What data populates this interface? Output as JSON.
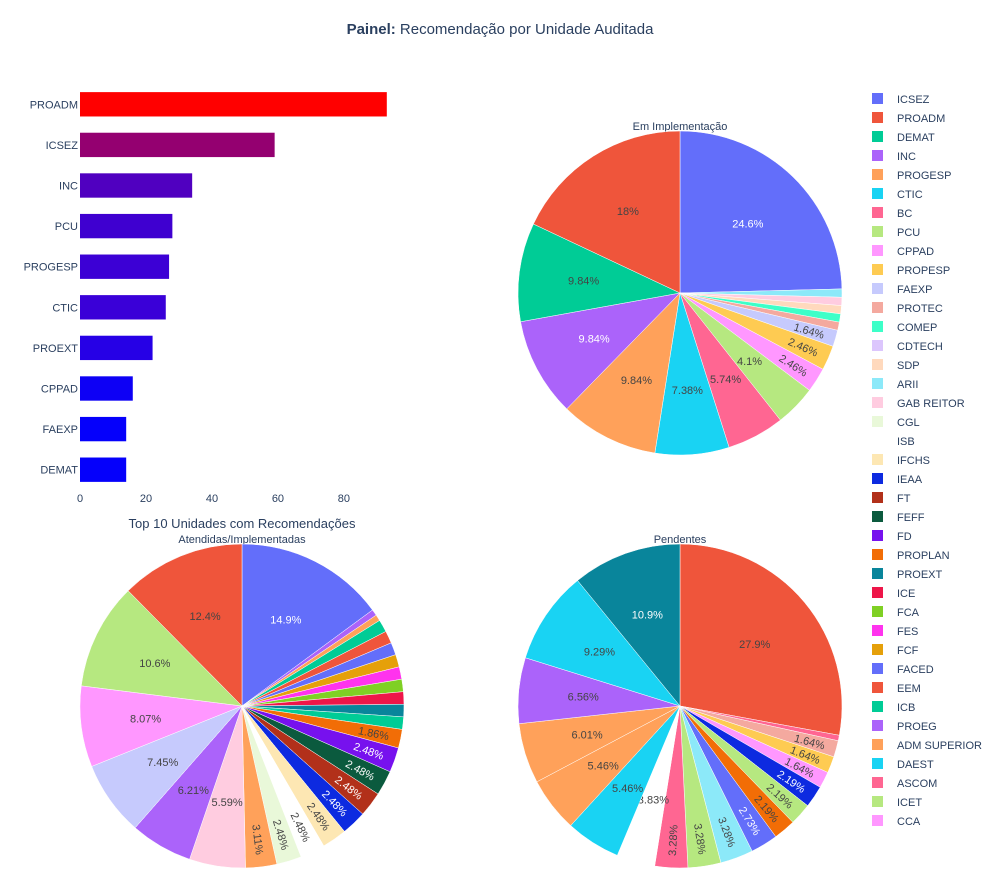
{
  "title": {
    "bold": "Painel:",
    "rest": " Recomendação por Unidade Auditada"
  },
  "legend_items": [
    {
      "name": "ICSEZ",
      "color": "#636efa"
    },
    {
      "name": "PROADM",
      "color": "#ef553b"
    },
    {
      "name": "DEMAT",
      "color": "#00cc96"
    },
    {
      "name": "INC",
      "color": "#ab63fa"
    },
    {
      "name": "PROGESP",
      "color": "#ffa15a"
    },
    {
      "name": "CTIC",
      "color": "#19d3f3"
    },
    {
      "name": "BC",
      "color": "#ff6692"
    },
    {
      "name": "PCU",
      "color": "#b6e880"
    },
    {
      "name": "CPPAD",
      "color": "#ff97ff"
    },
    {
      "name": "PROPESP",
      "color": "#fecb52"
    },
    {
      "name": "FAEXP",
      "color": "#c6cafd"
    },
    {
      "name": "PROTEC",
      "color": "#f4a99f"
    },
    {
      "name": "COMEP",
      "color": "#3dffc8"
    },
    {
      "name": "CDTECH",
      "color": "#dcc6fd"
    },
    {
      "name": "SDP",
      "color": "#ffd9bd"
    },
    {
      "name": "ARII",
      "color": "#8ce9f9"
    },
    {
      "name": "GAB REITOR",
      "color": "#ffcce0"
    },
    {
      "name": "CGL",
      "color": "#e9f8d9"
    },
    {
      "name": "ISB",
      "color": "#ffffff"
    },
    {
      "name": "IFCHS",
      "color": "#fde7b3"
    },
    {
      "name": "IEAA",
      "color": "#0d2ae0"
    },
    {
      "name": "FT",
      "color": "#b2301a"
    },
    {
      "name": "FEFF",
      "color": "#0b5a3e"
    },
    {
      "name": "FD",
      "color": "#7711ee"
    },
    {
      "name": "PROPLAN",
      "color": "#f26d06"
    },
    {
      "name": "PROEXT",
      "color": "#09859b"
    },
    {
      "name": "ICE",
      "color": "#ee1649"
    },
    {
      "name": "FCA",
      "color": "#7fd024"
    },
    {
      "name": "FES",
      "color": "#ff33ee"
    },
    {
      "name": "FCF",
      "color": "#e5a00a"
    },
    {
      "name": "FACED",
      "color": "#636efa"
    },
    {
      "name": "EEM",
      "color": "#ef553b"
    },
    {
      "name": "ICB",
      "color": "#00cc96"
    },
    {
      "name": "PROEG",
      "color": "#ab63fa"
    },
    {
      "name": "ADM SUPERIOR",
      "color": "#ffa15a"
    },
    {
      "name": "DAEST",
      "color": "#19d3f3"
    },
    {
      "name": "ASCOM",
      "color": "#ff6692"
    },
    {
      "name": "ICET",
      "color": "#b6e880"
    },
    {
      "name": "CCA",
      "color": "#ff97ff"
    }
  ],
  "chart_data": [
    {
      "type": "bar",
      "orientation": "horizontal",
      "title": "Top 10 Unidades com Recomendações",
      "categories": [
        "PROADM",
        "ICSEZ",
        "INC",
        "PCU",
        "PROGESP",
        "CTIC",
        "PROEXT",
        "CPPAD",
        "FAEXP",
        "DEMAT"
      ],
      "values": [
        93,
        59,
        34,
        28,
        27,
        26,
        22,
        16,
        14,
        14
      ],
      "colors": [
        "#ff0000",
        "#940070",
        "#5000c0",
        "#3f00d0",
        "#3c00d5",
        "#3a00d8",
        "#2600e6",
        "#0d00f5",
        "#0500fb",
        "#0500fb"
      ],
      "xticks": [
        "0",
        "20",
        "40",
        "60",
        "80"
      ],
      "xlim": [
        0,
        97
      ]
    },
    {
      "type": "pie",
      "title": "Em Implementação",
      "slices": [
        {
          "name": "ICSEZ",
          "value": 24.6,
          "label": "24.6%",
          "label_color": "#ffffff"
        },
        {
          "name": "ARII",
          "value": 0.82,
          "label": ""
        },
        {
          "name": "GAB REITOR",
          "value": 0.82,
          "label": ""
        },
        {
          "name": "SDP",
          "value": 0.82,
          "label": ""
        },
        {
          "name": "COMEP",
          "value": 0.82,
          "label": ""
        },
        {
          "name": "PROTEC",
          "value": 0.82,
          "label": ""
        },
        {
          "name": "FAEXP",
          "value": 1.64,
          "label": "1.64%",
          "label_color": "#444444",
          "radial": true
        },
        {
          "name": "PROPESP",
          "value": 2.46,
          "label": "2.46%",
          "label_color": "#444444",
          "radial": true
        },
        {
          "name": "CPPAD",
          "value": 2.46,
          "label": "2.46%",
          "label_color": "#444444",
          "radial": true
        },
        {
          "name": "PCU",
          "value": 4.1,
          "label": "4.1%",
          "label_color": "#444444"
        },
        {
          "name": "BC",
          "value": 5.74,
          "label": "5.74%",
          "label_color": "#444444"
        },
        {
          "name": "CTIC",
          "value": 7.38,
          "label": "7.38%",
          "label_color": "#444444"
        },
        {
          "name": "PROGESP",
          "value": 9.84,
          "label": "9.84%",
          "label_color": "#444444"
        },
        {
          "name": "INC",
          "value": 9.84,
          "label": "9.84%",
          "label_color": "#ffffff"
        },
        {
          "name": "DEMAT",
          "value": 9.84,
          "label": "9.84%",
          "label_color": "#444444"
        },
        {
          "name": "PROADM",
          "value": 18.0,
          "label": "18%",
          "label_color": "#444444"
        }
      ]
    },
    {
      "type": "pie",
      "title": "Atendidas/Implementadas",
      "slices": [
        {
          "name": "ICSEZ",
          "value": 14.9,
          "label": "14.9%",
          "label_color": "#ffffff"
        },
        {
          "name": "INC",
          "value": 0.62,
          "label": ""
        },
        {
          "name": "PROGESP",
          "value": 0.62,
          "label": ""
        },
        {
          "name": "ICB",
          "value": 1.24,
          "label": ""
        },
        {
          "name": "EEM",
          "value": 1.24,
          "label": ""
        },
        {
          "name": "FACED",
          "value": 1.24,
          "label": ""
        },
        {
          "name": "FCF",
          "value": 1.24,
          "label": ""
        },
        {
          "name": "FES",
          "value": 1.24,
          "label": ""
        },
        {
          "name": "FCA",
          "value": 1.24,
          "label": ""
        },
        {
          "name": "ICE",
          "value": 1.24,
          "label": ""
        },
        {
          "name": "PROEXT",
          "value": 1.24,
          "label": ""
        },
        {
          "name": "DEMAT",
          "value": 1.24,
          "label": ""
        },
        {
          "name": "PROPLAN",
          "value": 1.86,
          "label": "1.86%",
          "label_color": "#444444",
          "radial": true
        },
        {
          "name": "FD",
          "value": 2.48,
          "label": "2.48%",
          "label_color": "#ffffff",
          "radial": true
        },
        {
          "name": "FEFF",
          "value": 2.48,
          "label": "2.48%",
          "label_color": "#ffffff",
          "radial": true
        },
        {
          "name": "FT",
          "value": 2.48,
          "label": "2.48%",
          "label_color": "#ffffff",
          "radial": true
        },
        {
          "name": "IEAA",
          "value": 2.48,
          "label": "2.48%",
          "label_color": "#ffffff",
          "radial": true
        },
        {
          "name": "IFCHS",
          "value": 2.48,
          "label": "2.48%",
          "label_color": "#444444",
          "radial": true
        },
        {
          "name": "ISB",
          "value": 2.48,
          "label": "2.48%",
          "label_color": "#444444",
          "radial": true
        },
        {
          "name": "CGL",
          "value": 2.48,
          "label": "2.48%",
          "label_color": "#444444",
          "radial": true
        },
        {
          "name": "PROGESP",
          "value": 3.11,
          "label": "3.11%",
          "label_color": "#444444",
          "radial": true
        },
        {
          "name": "GAB REITOR",
          "value": 5.59,
          "label": "5.59%",
          "label_color": "#444444"
        },
        {
          "name": "INC",
          "value": 6.21,
          "label": "6.21%",
          "label_color": "#444444"
        },
        {
          "name": "FAEXP",
          "value": 7.45,
          "label": "7.45%",
          "label_color": "#444444"
        },
        {
          "name": "CPPAD",
          "value": 8.07,
          "label": "8.07%",
          "label_color": "#444444"
        },
        {
          "name": "PCU",
          "value": 10.6,
          "label": "10.6%",
          "label_color": "#444444"
        },
        {
          "name": "PROADM",
          "value": 12.4,
          "label": "12.4%",
          "label_color": "#444444"
        }
      ]
    },
    {
      "type": "pie",
      "title": "Pendentes",
      "slices": [
        {
          "name": "PROADM",
          "value": 27.9,
          "label": "27.9%",
          "label_color": "#444444"
        },
        {
          "name": "ASCOM",
          "value": 0.55,
          "label": ""
        },
        {
          "name": "PROTEC",
          "value": 1.64,
          "label": "1.64%",
          "label_color": "#444444",
          "radial": true
        },
        {
          "name": "PROPESP",
          "value": 1.64,
          "label": "1.64%",
          "label_color": "#444444",
          "radial": true
        },
        {
          "name": "CPPAD",
          "value": 1.64,
          "label": "1.64%",
          "label_color": "#444444",
          "radial": true
        },
        {
          "name": "IEAA",
          "value": 2.19,
          "label": "2.19%",
          "label_color": "#ffffff",
          "radial": true
        },
        {
          "name": "PCU",
          "value": 2.19,
          "label": "2.19%",
          "label_color": "#444444",
          "radial": true
        },
        {
          "name": "PROPLAN",
          "value": 2.19,
          "label": "2.19%",
          "label_color": "#444444",
          "radial": true
        },
        {
          "name": "FACED",
          "value": 2.73,
          "label": "2.73%",
          "label_color": "#ffffff",
          "radial": true
        },
        {
          "name": "ARII",
          "value": 3.28,
          "label": "3.28%",
          "label_color": "#444444",
          "radial": true
        },
        {
          "name": "ICET",
          "value": 3.28,
          "label": "3.28%",
          "label_color": "#444444",
          "radial": true
        },
        {
          "name": "ASCOM",
          "value": 3.28,
          "label": "3.28%",
          "label_color": "#444444",
          "radial": true
        },
        {
          "name": "ISB",
          "value": 3.83,
          "label": "3.83%",
          "label_color": "#444444"
        },
        {
          "name": "DAEST",
          "value": 5.46,
          "label": "5.46%",
          "label_color": "#444444"
        },
        {
          "name": "ADM SUPERIOR",
          "value": 5.46,
          "label": "5.46%",
          "label_color": "#444444"
        },
        {
          "name": "ADM SUPERIOR",
          "value": 6.01,
          "label": "6.01%",
          "label_color": "#444444"
        },
        {
          "name": "PROEG",
          "value": 6.56,
          "label": "6.56%",
          "label_color": "#444444"
        },
        {
          "name": "DAEST",
          "value": 9.29,
          "label": "9.29%",
          "label_color": "#444444"
        },
        {
          "name": "PROEXT",
          "value": 10.9,
          "label": "10.9%",
          "label_color": "#ffffff"
        }
      ]
    }
  ]
}
